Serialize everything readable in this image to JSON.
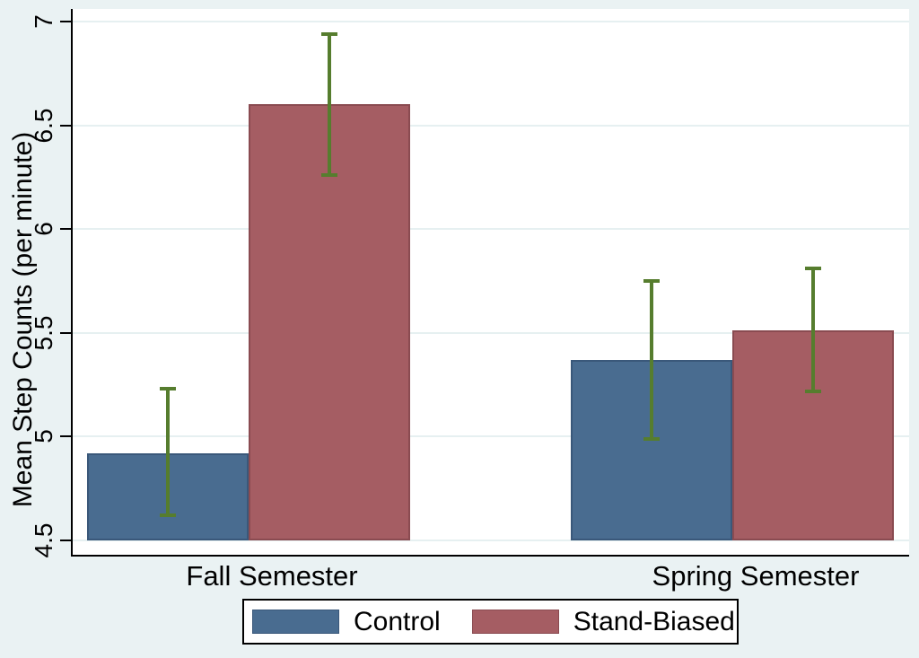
{
  "figure": {
    "outer_background": "#EAF2F3",
    "plot_background": "#FFFFFF",
    "gridline_color": "#E6F0F1",
    "axis_color": "#000000",
    "text_color": "#000000"
  },
  "chart_data": {
    "type": "bar",
    "title": "",
    "xlabel": "",
    "ylabel": "Mean Step Counts (per minute)",
    "categories": [
      "Fall Semester",
      "Spring Semester"
    ],
    "series": [
      {
        "name": "Control",
        "color": "#496C90",
        "edge_color": "#3A587A",
        "values": [
          4.92,
          5.37
        ],
        "ci_low": [
          4.62,
          4.99
        ],
        "ci_high": [
          5.23,
          5.75
        ]
      },
      {
        "name": "Stand-Biased",
        "color": "#A55D63",
        "edge_color": "#8A4B51",
        "values": [
          6.6,
          5.51
        ],
        "ci_low": [
          6.26,
          5.22
        ],
        "ci_high": [
          6.94,
          5.81
        ]
      }
    ],
    "error_bar_color": "#567D2E",
    "ylim": [
      4.5,
      7
    ],
    "yticks": [
      "4.5",
      "5",
      "5.5",
      "6",
      "6.5",
      "7"
    ],
    "ytick_values": [
      4.5,
      5.0,
      5.5,
      6.0,
      6.5,
      7.0
    ],
    "grid": true,
    "legend_position": "bottom-center"
  }
}
